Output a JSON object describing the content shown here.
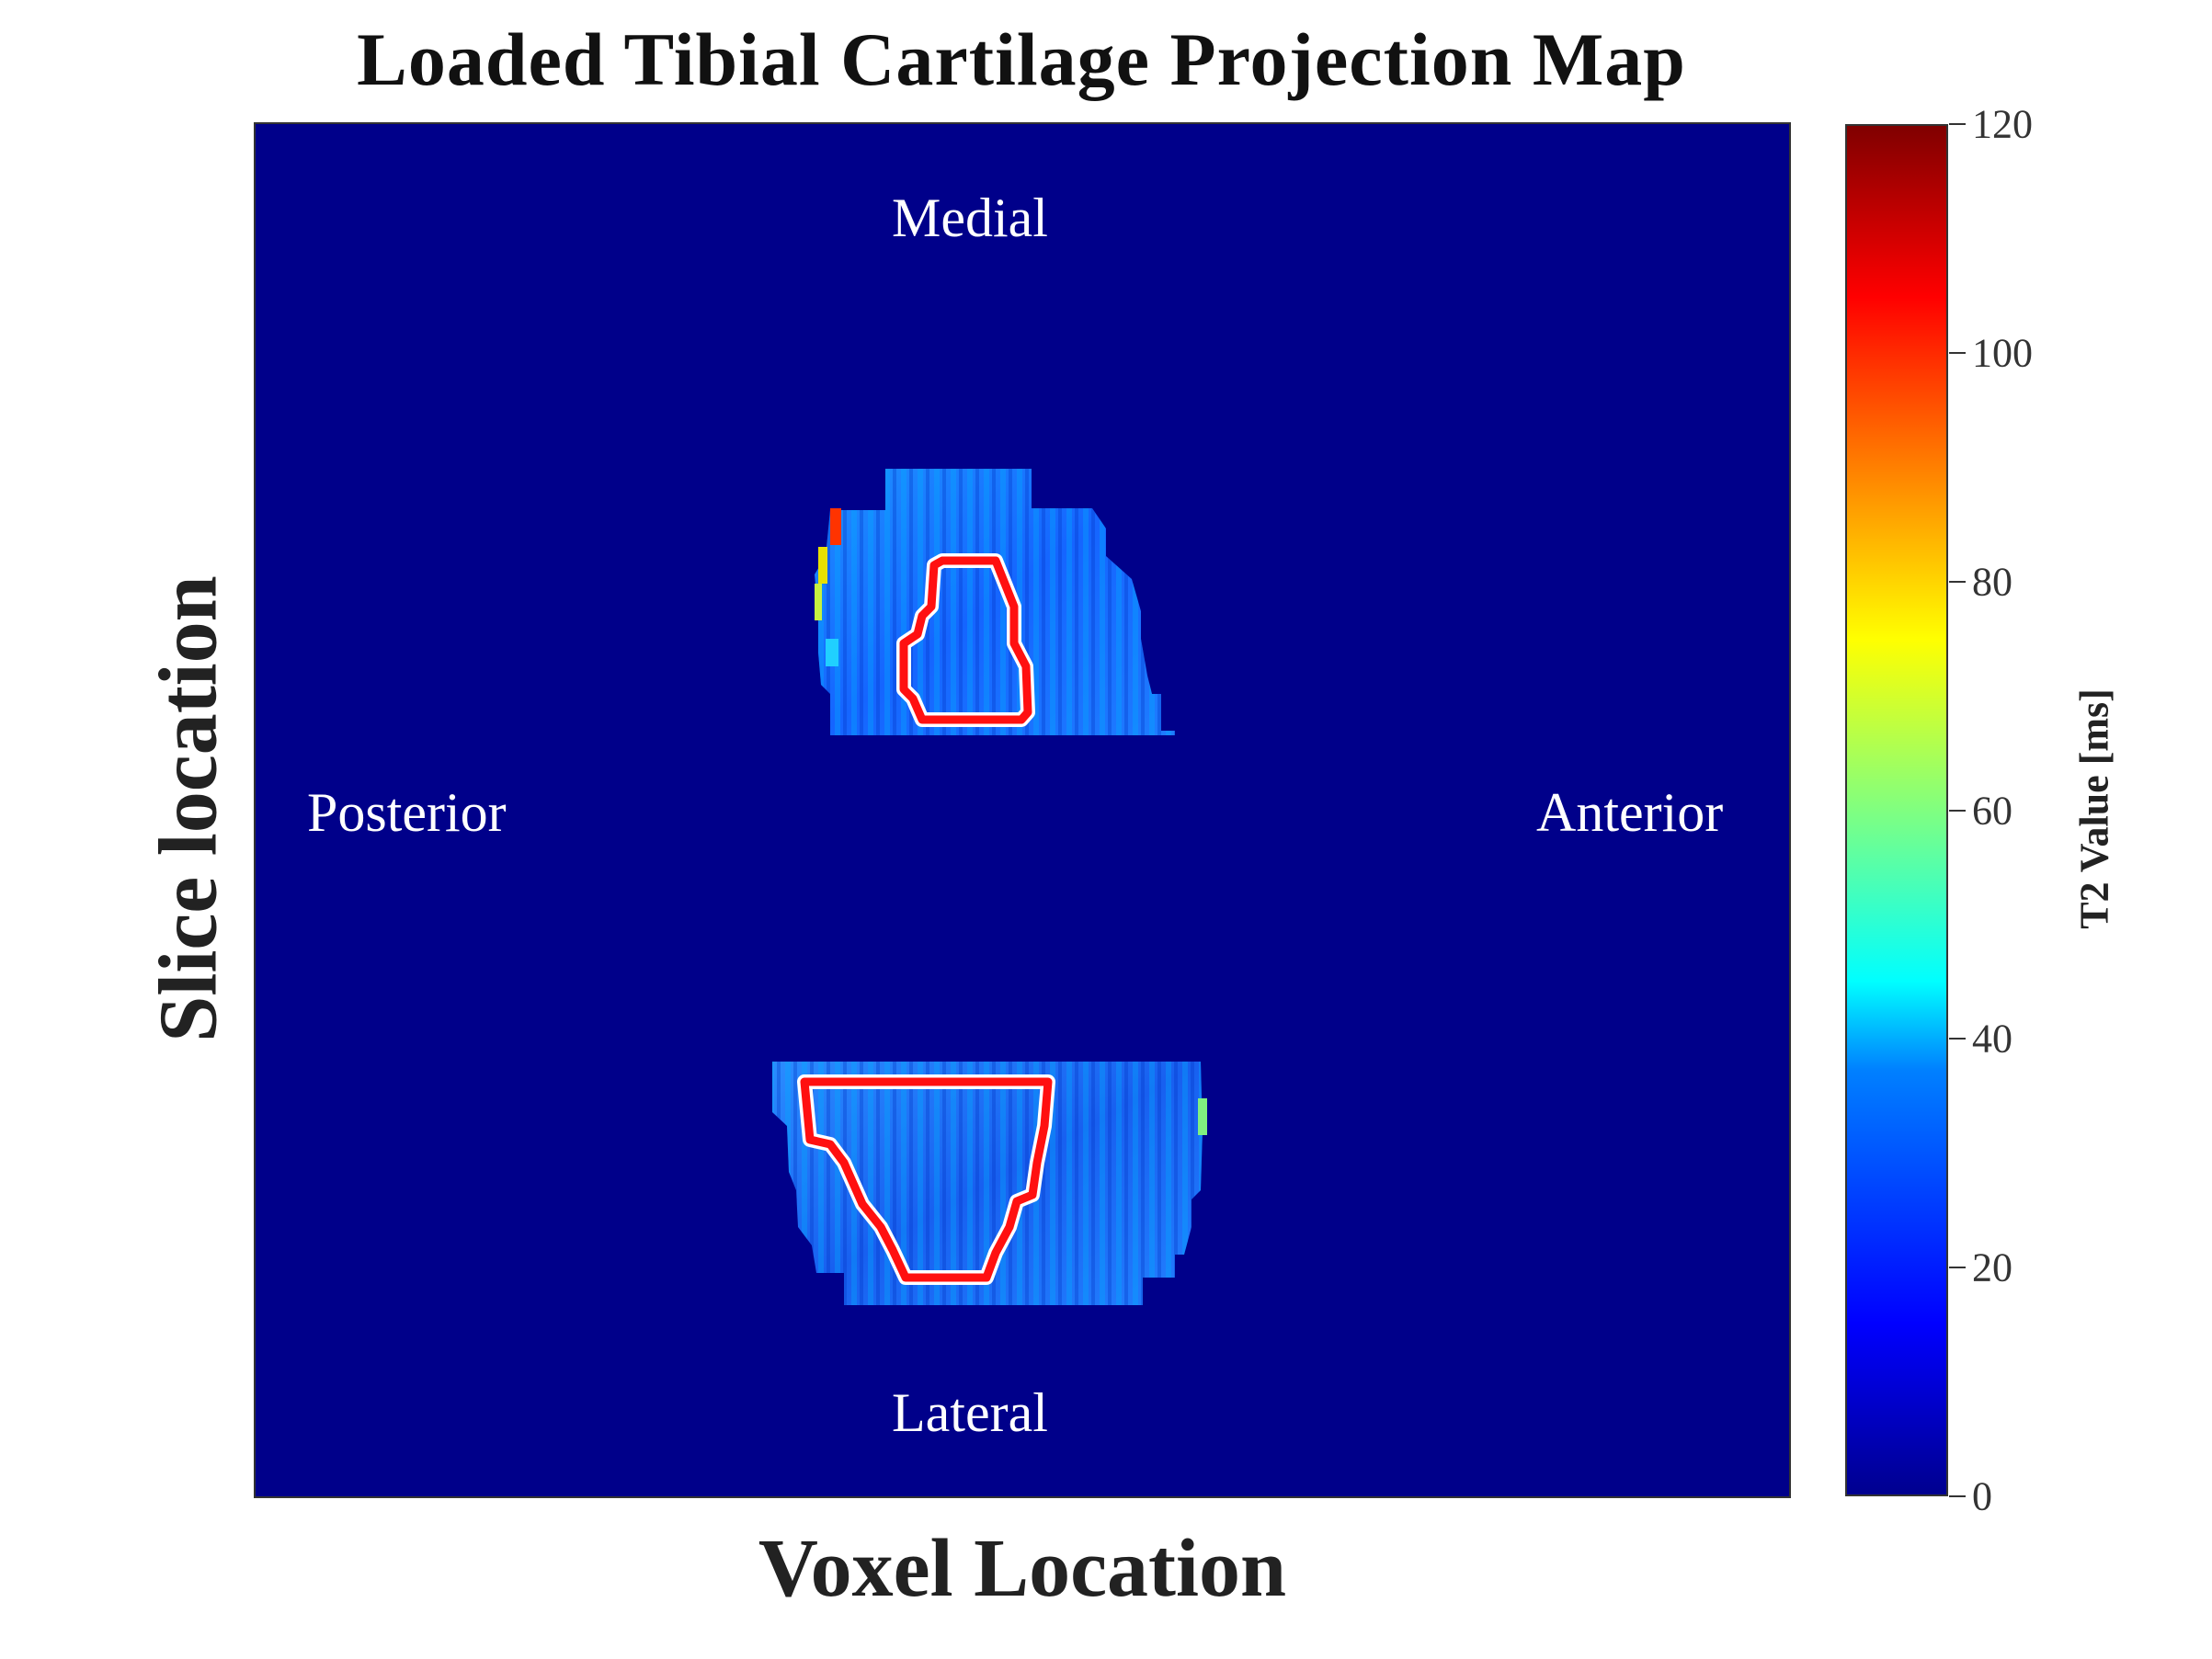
{
  "chart_data": {
    "type": "heatmap",
    "title": "Loaded Tibial Cartilage Projection Map",
    "xlabel": "Voxel Location",
    "ylabel": "Slice location",
    "colorbar": {
      "label": "T2 Value [ms]",
      "range": [
        0,
        120
      ],
      "ticks": [
        "0",
        "20",
        "40",
        "60",
        "80",
        "100",
        "120"
      ],
      "colormap": "jet"
    },
    "annotations": {
      "top": "Medial",
      "bottom": "Lateral",
      "left": "Posterior",
      "right": "Anterior"
    },
    "background_value": 0,
    "regions": [
      {
        "name": "medial",
        "approx_t2_ms": 35,
        "max_t2_ms": 105,
        "roi_outline_color": "#ff0000"
      },
      {
        "name": "lateral",
        "approx_t2_ms": 35,
        "max_t2_ms": 60,
        "roi_outline_color": "#ff0000"
      }
    ]
  }
}
